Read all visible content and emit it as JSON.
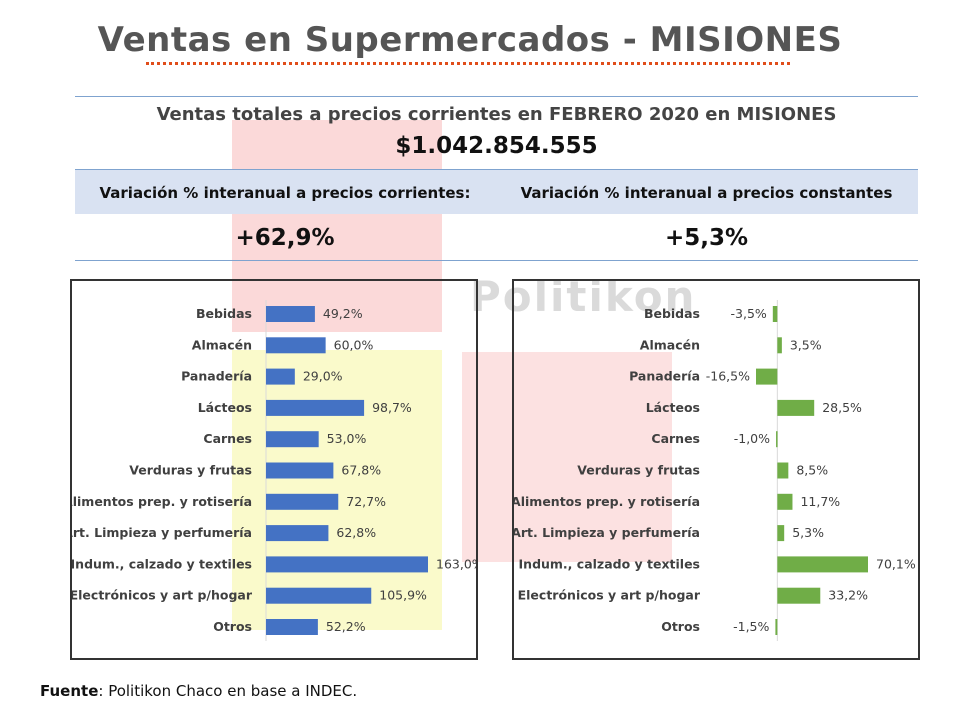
{
  "watermark": "Politikon",
  "title": "Ventas en Supermercados - MISIONES",
  "header": {
    "subtitle": "Ventas totales a precios corrientes en FEBRERO 2020 en MISIONES",
    "total": "$1.042.854.555",
    "left_label": "Variación % interanual a precios corrientes:",
    "right_label": "Variación % interanual a precios constantes",
    "left_value": "+62,9%",
    "right_value": "+5,3%"
  },
  "source": {
    "prefix": "Fuente",
    "text": ": Politikon Chaco en base a INDEC."
  },
  "colors": {
    "left_bars": "#4472c4",
    "right_bars": "#70ad47",
    "title_underline": "#e04d1a"
  },
  "chart_data": [
    {
      "type": "bar",
      "orientation": "horizontal",
      "categories": [
        "Bebidas",
        "Almacén",
        "Panadería",
        "Lácteos",
        "Carnes",
        "Verduras y frutas",
        "Alimentos prep. y rotisería",
        "Art. Limpieza y perfumería",
        "Indum., calzado y textiles",
        "Electrónicos y art p/hogar",
        "Otros"
      ],
      "values": [
        49.2,
        60.0,
        29.0,
        98.7,
        53.0,
        67.8,
        72.7,
        62.8,
        163.0,
        105.9,
        52.2
      ],
      "labels": [
        "49,2%",
        "60,0%",
        "29,0%",
        "98,7%",
        "53,0%",
        "67,8%",
        "72,7%",
        "62,8%",
        "163,0%",
        "105,9%",
        "52,2%"
      ],
      "xlim": [
        0,
        163.0
      ]
    },
    {
      "type": "bar",
      "orientation": "horizontal",
      "categories": [
        "Bebidas",
        "Almacén",
        "Panadería",
        "Lácteos",
        "Carnes",
        "Verduras y frutas",
        "Alimentos prep. y rotisería",
        "Art. Limpieza y perfumería",
        "Indum., calzado y textiles",
        "Electrónicos y art p/hogar",
        "Otros"
      ],
      "values": [
        -3.5,
        3.5,
        -16.5,
        28.5,
        -1.0,
        8.5,
        11.7,
        5.3,
        70.1,
        33.2,
        -1.5
      ],
      "labels": [
        "-3,5%",
        "3,5%",
        "-16,5%",
        "28,5%",
        "-1,0%",
        "8,5%",
        "11,7%",
        "5,3%",
        "70,1%",
        "33,2%",
        "-1,5%"
      ],
      "xlim": [
        -16.5,
        70.1
      ]
    }
  ]
}
